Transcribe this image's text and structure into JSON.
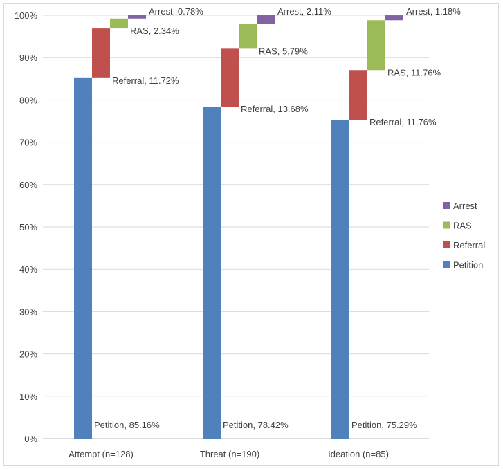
{
  "chart_data": {
    "type": "bar",
    "stacking": "waterfall",
    "categories": [
      "Attempt (n=128)",
      "Threat (n=190)",
      "Ideation (n=85)"
    ],
    "series": [
      {
        "name": "Petition",
        "values": [
          85.16,
          78.42,
          75.29
        ],
        "labels": [
          "Petition, 85.16%",
          "Petition, 78.42%",
          "Petition, 75.29%"
        ]
      },
      {
        "name": "Referral",
        "values": [
          11.72,
          13.68,
          11.76
        ],
        "labels": [
          "Referral, 11.72%",
          "Referral, 13.68%",
          "Referral, 11.76%"
        ]
      },
      {
        "name": "RAS",
        "values": [
          2.34,
          5.79,
          11.76
        ],
        "labels": [
          "RAS, 2.34%",
          "RAS, 5.79%",
          "RAS, 11.76%"
        ]
      },
      {
        "name": "Arrest",
        "values": [
          0.78,
          2.11,
          1.18
        ],
        "labels": [
          "Arrest, 0.78%",
          "Arrest, 2.11%",
          "Arrest, 1.18%"
        ]
      }
    ],
    "ylim": [
      0,
      100
    ],
    "yticks": [
      "0%",
      "10%",
      "20%",
      "30%",
      "40%",
      "50%",
      "60%",
      "70%",
      "80%",
      "90%",
      "100%"
    ],
    "grid": true,
    "legend_position": "right",
    "legend_order": [
      "Arrest",
      "RAS",
      "Referral",
      "Petition"
    ]
  },
  "colors": {
    "Petition": "#4f81bd",
    "Referral": "#c0504d",
    "RAS": "#9bbb59",
    "Arrest": "#8064a2",
    "grid": "#d9d9d9",
    "axis": "#bfbfbf"
  }
}
